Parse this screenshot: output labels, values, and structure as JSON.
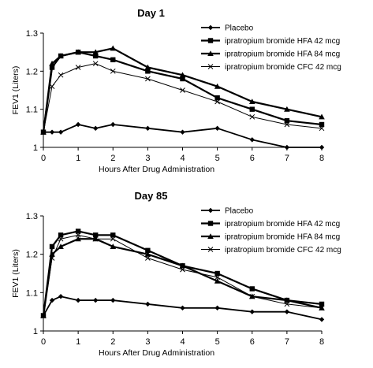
{
  "chart_data": [
    {
      "type": "line",
      "title": "Day 1",
      "xlabel": "Hours After Drug Administration",
      "ylabel": "FEV1 (Liters)",
      "xlim": [
        0,
        8
      ],
      "ylim": [
        1,
        1.3
      ],
      "xticks": [
        "0",
        "1",
        "2",
        "3",
        "4",
        "5",
        "6",
        "7",
        "8"
      ],
      "yticks": [
        "1",
        "1.1",
        "1.2",
        "1.3"
      ],
      "legend_position": "top-right",
      "grid": false,
      "series": [
        {
          "name": "Placebo",
          "marker": "diamond",
          "x": [
            0,
            0.25,
            0.5,
            1,
            1.5,
            2,
            3,
            4,
            5,
            6,
            7,
            8
          ],
          "values": [
            1.04,
            1.04,
            1.04,
            1.06,
            1.05,
            1.06,
            1.05,
            1.04,
            1.05,
            1.02,
            1.0,
            1.0
          ]
        },
        {
          "name": "ipratropium bromide HFA 42 mcg",
          "marker": "square",
          "x": [
            0,
            0.25,
            0.5,
            1,
            1.5,
            2,
            3,
            4,
            5,
            6,
            7,
            8
          ],
          "values": [
            1.04,
            1.21,
            1.24,
            1.25,
            1.24,
            1.23,
            1.2,
            1.18,
            1.13,
            1.1,
            1.07,
            1.06
          ]
        },
        {
          "name": "ipratropium bromide HFA 84 mcg",
          "marker": "triangle",
          "x": [
            0,
            0.25,
            0.5,
            1,
            1.5,
            2,
            3,
            4,
            5,
            6,
            7,
            8
          ],
          "values": [
            1.04,
            1.22,
            1.24,
            1.25,
            1.25,
            1.26,
            1.21,
            1.19,
            1.16,
            1.12,
            1.1,
            1.08
          ]
        },
        {
          "name": "ipratropium bromide CFC 42 mcg",
          "marker": "x",
          "x": [
            0,
            0.25,
            0.5,
            1,
            1.5,
            2,
            3,
            4,
            5,
            6,
            7,
            8
          ],
          "values": [
            1.04,
            1.16,
            1.19,
            1.21,
            1.22,
            1.2,
            1.18,
            1.15,
            1.12,
            1.08,
            1.06,
            1.05
          ]
        }
      ]
    },
    {
      "type": "line",
      "title": "Day 85",
      "xlabel": "Hours After Drug Administration",
      "ylabel": "FEV1 (Liters)",
      "xlim": [
        0,
        8
      ],
      "ylim": [
        1,
        1.3
      ],
      "xticks": [
        "0",
        "1",
        "2",
        "3",
        "4",
        "5",
        "6",
        "7",
        "8"
      ],
      "yticks": [
        "1",
        "1.1",
        "1.2",
        "1.3"
      ],
      "legend_position": "top-right",
      "grid": false,
      "series": [
        {
          "name": "Placebo",
          "marker": "diamond",
          "x": [
            0,
            0.25,
            0.5,
            1,
            1.5,
            2,
            3,
            4,
            5,
            6,
            7,
            8
          ],
          "values": [
            1.04,
            1.08,
            1.09,
            1.08,
            1.08,
            1.08,
            1.07,
            1.06,
            1.06,
            1.05,
            1.05,
            1.03
          ]
        },
        {
          "name": "ipratropium bromide HFA 42 mcg",
          "marker": "square",
          "x": [
            0,
            0.25,
            0.5,
            1,
            1.5,
            2,
            3,
            4,
            5,
            6,
            7,
            8
          ],
          "values": [
            1.04,
            1.22,
            1.25,
            1.26,
            1.25,
            1.25,
            1.21,
            1.17,
            1.15,
            1.11,
            1.08,
            1.07
          ]
        },
        {
          "name": "ipratropium bromide HFA 84 mcg",
          "marker": "triangle",
          "x": [
            0,
            0.25,
            0.5,
            1,
            1.5,
            2,
            3,
            4,
            5,
            6,
            7,
            8
          ],
          "values": [
            1.04,
            1.2,
            1.22,
            1.24,
            1.24,
            1.22,
            1.2,
            1.17,
            1.13,
            1.09,
            1.08,
            1.06
          ]
        },
        {
          "name": "ipratropium bromide CFC 42 mcg",
          "marker": "x",
          "x": [
            0,
            0.25,
            0.5,
            1,
            1.5,
            2,
            3,
            4,
            5,
            6,
            7,
            8
          ],
          "values": [
            1.04,
            1.19,
            1.24,
            1.25,
            1.24,
            1.24,
            1.19,
            1.16,
            1.14,
            1.09,
            1.07,
            1.06
          ]
        }
      ]
    }
  ]
}
